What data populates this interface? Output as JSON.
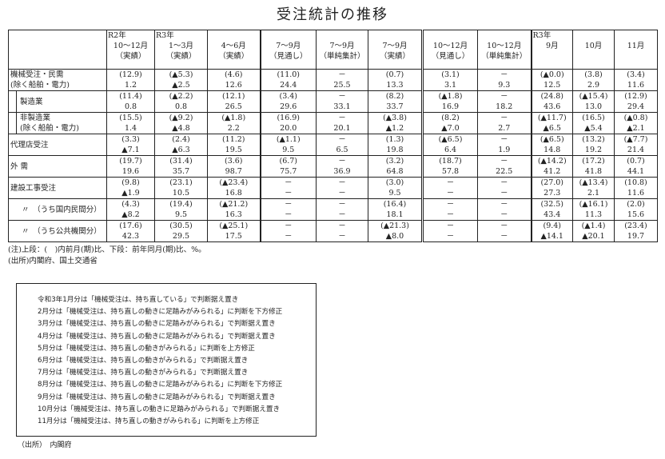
{
  "title": "受注統計の推移",
  "table": {
    "columns": [
      {
        "year": "R2年",
        "period": "10～12月",
        "kind": "（実績）"
      },
      {
        "year": "R3年",
        "period": "1～3月",
        "kind": "（実績）"
      },
      {
        "year": "",
        "period": "4～6月",
        "kind": "（実績）"
      },
      {
        "year": "",
        "period": "7～9月",
        "kind": "（見通し）"
      },
      {
        "year": "",
        "period": "7～9月",
        "kind": "（単純集計）"
      },
      {
        "year": "",
        "period": "7～9月",
        "kind": "（実績）"
      },
      {
        "year": "",
        "period": "10～12月",
        "kind": "（見通し）"
      },
      {
        "year": "",
        "period": "10～12月",
        "kind": "（単純集計）"
      },
      {
        "year": "R3年",
        "period": "9月",
        "kind": ""
      },
      {
        "year": "",
        "period": "10月",
        "kind": ""
      },
      {
        "year": "",
        "period": "11月",
        "kind": ""
      }
    ],
    "rows": [
      {
        "label": [
          "機械受注・民需",
          "(除く船舶・電力)"
        ],
        "style": "",
        "upper": [
          "(12.9)",
          "(▲5.3)",
          "(4.6)",
          "(11.0)",
          "－",
          "(0.7)",
          "(3.1)",
          "－",
          "(▲0.0)",
          "(3.8)",
          "(3.4)"
        ],
        "lower": [
          "1.2",
          "▲2.5",
          "12.6",
          "24.4",
          "25.5",
          "13.3",
          "3.1",
          "9.3",
          "12.5",
          "2.9",
          "11.6"
        ]
      },
      {
        "label": [
          "製造業",
          ""
        ],
        "style": "sub",
        "upper": [
          "(11.4)",
          "(▲2.2)",
          "(12.1)",
          "(3.4)",
          "－",
          "(8.2)",
          "(▲1.8)",
          "－",
          "(24.8)",
          "(▲15.4)",
          "(12.9)"
        ],
        "lower": [
          "0.8",
          "0.8",
          "26.5",
          "29.6",
          "33.1",
          "33.7",
          "16.9",
          "18.2",
          "43.6",
          "13.0",
          "29.4"
        ]
      },
      {
        "label": [
          "非製造業",
          "(除く船舶・電力)"
        ],
        "style": "sub",
        "upper": [
          "(15.5)",
          "(▲9.2)",
          "(▲1.8)",
          "(16.9)",
          "－",
          "(▲3.8)",
          "(8.2)",
          "－",
          "(▲11.7)",
          "(16.5)",
          "(▲0.8)"
        ],
        "lower": [
          "1.4",
          "▲4.8",
          "2.2",
          "20.0",
          "20.1",
          "▲1.2",
          "▲7.0",
          "2.7",
          "▲6.5",
          "▲5.4",
          "▲2.1"
        ]
      },
      {
        "label": [
          "代理店受注"
        ],
        "style": "",
        "upper": [
          "(3.3)",
          "(2.4)",
          "(11.2)",
          "(▲1.1)",
          "－",
          "(1.3)",
          "(▲6.5)",
          "－",
          "(▲6.5)",
          "(13.2)",
          "(▲7.7)"
        ],
        "lower": [
          "▲7.1",
          "▲6.3",
          "19.5",
          "9.5",
          "6.5",
          "19.8",
          "6.4",
          "1.9",
          "14.8",
          "19.2",
          "21.4"
        ]
      },
      {
        "label": [
          "外 需"
        ],
        "style": "",
        "upper": [
          "(19.7)",
          "(31.4)",
          "(3.6)",
          "(6.7)",
          "－",
          "(3.2)",
          "(18.7)",
          "－",
          "(▲14.2)",
          "(17.2)",
          "(0.7)"
        ],
        "lower": [
          "19.6",
          "35.7",
          "98.7",
          "75.7",
          "36.9",
          "64.8",
          "57.8",
          "22.5",
          "41.2",
          "41.8",
          "44.1"
        ]
      },
      {
        "label": [
          "建設工事受注"
        ],
        "style": "",
        "upper": [
          "(9.8)",
          "(23.1)",
          "(▲23.4)",
          "－",
          "－",
          "(3.0)",
          "－",
          "－",
          "(27.0)",
          "(▲13.4)",
          "(10.8)"
        ],
        "lower": [
          "▲1.9",
          "10.5",
          "16.8",
          "－",
          "－",
          "9.5",
          "－",
          "－",
          "27.3",
          "2.1",
          "11.6"
        ]
      },
      {
        "label": [
          "〃　（うち国内民間分）"
        ],
        "style": "ditto",
        "upper": [
          "(4.3)",
          "(19.4)",
          "(▲21.2)",
          "－",
          "－",
          "(16.4)",
          "－",
          "－",
          "(32.5)",
          "(▲16.1)",
          "(2.0)"
        ],
        "lower": [
          "▲8.2",
          "9.5",
          "16.3",
          "－",
          "－",
          "18.1",
          "－",
          "－",
          "43.4",
          "11.3",
          "15.6"
        ]
      },
      {
        "label": [
          "〃　（うち公共機関分）"
        ],
        "style": "ditto",
        "upper": [
          "(17.6)",
          "(30.5)",
          "(▲25.1)",
          "－",
          "－",
          "(▲21.3)",
          "－",
          "－",
          "(9.4)",
          "(▲1.4)",
          "(23.4)"
        ],
        "lower": [
          "42.3",
          "29.5",
          "17.5",
          "－",
          "－",
          "▲8.0",
          "－",
          "－",
          "▲14.1",
          "▲20.1",
          "19.7"
        ]
      }
    ]
  },
  "notes": [
    "(注)上段：(　)内前月(期)比、下段：前年同月(期)比、%。",
    "(出所)内閣府、国土交通省"
  ],
  "judgments": [
    "令和3年1月分は「機械受注は、持ち直している」で判断据え置き",
    "2月分は「機械受注は、持ち直しの動きに足踏みがみられる」に判断を下方修正",
    "3月分は「機械受注は、持ち直しの動きに足踏みがみられる」で判断据え置き",
    "4月分は「機械受注は、持ち直しの動きに足踏みがみられる」で判断据え置き",
    "5月分は「機械受注は、持ち直しの動きがみられる」に判断を上方修正",
    "6月分は「機械受注は、持ち直しの動きがみられる」で判断据え置き",
    "7月分は「機械受注は、持ち直しの動きがみられる」で判断据え置き",
    "8月分は「機械受注は、持ち直しの動きに足踏みがみられる」に判断を下方修正",
    "9月分は「機械受注は、持ち直しの動きに足踏みがみられる」で判断据え置き",
    "10月分は「機械受注は、持ち直しの動きに足踏みがみられる」で判断据え置き",
    "11月分は「機械受注は、持ち直しの動きがみられる」に判断を上方修正"
  ],
  "source": "（出所）　内閣府"
}
